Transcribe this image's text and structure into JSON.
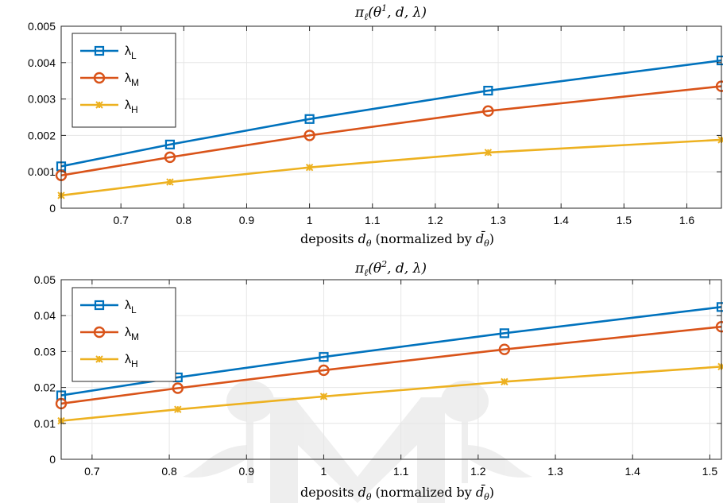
{
  "chart_data": [
    {
      "type": "line",
      "title": "π_ℓ(θ¹, d, λ)",
      "xlabel": "deposits d_θ (normalized by d̄_θ)",
      "ylabel": "",
      "xlim": [
        0.605,
        1.655
      ],
      "ylim": [
        0,
        0.005
      ],
      "xticks": [
        0.7,
        0.8,
        0.9,
        1,
        1.1,
        1.2,
        1.3,
        1.4,
        1.5,
        1.6
      ],
      "xtick_labels": [
        "0.7",
        "0.8",
        "0.9",
        "1",
        "1.1",
        "1.2",
        "1.3",
        "1.4",
        "1.5",
        "1.6"
      ],
      "yticks": [
        0,
        0.001,
        0.002,
        0.003,
        0.004,
        0.005
      ],
      "ytick_labels": [
        "0",
        "0.001",
        "0.002",
        "0.003",
        "0.004",
        "0.005"
      ],
      "grid": true,
      "legend_position": "top-left",
      "x": [
        0.605,
        0.778,
        1.0,
        1.284,
        1.655
      ],
      "series": [
        {
          "name": "λL",
          "label_main": "λ",
          "label_sub": "L",
          "color": "#0072BD",
          "marker": "square",
          "values": [
            0.00115,
            0.00175,
            0.00245,
            0.00323,
            0.00406
          ]
        },
        {
          "name": "λM",
          "label_main": "λ",
          "label_sub": "M",
          "color": "#D95319",
          "marker": "circle",
          "values": [
            0.0009,
            0.0014,
            0.002,
            0.00267,
            0.00335
          ]
        },
        {
          "name": "λH",
          "label_main": "λ",
          "label_sub": "H",
          "color": "#EDB120",
          "marker": "star",
          "values": [
            0.00035,
            0.00072,
            0.00112,
            0.00153,
            0.00188
          ]
        }
      ]
    },
    {
      "type": "line",
      "title": "π_ℓ(θ², d, λ)",
      "xlabel": "deposits d_θ (normalized by d̄_θ)",
      "ylabel": "",
      "xlim": [
        0.66,
        1.515
      ],
      "ylim": [
        0,
        0.05
      ],
      "xticks": [
        0.7,
        0.8,
        0.9,
        1,
        1.1,
        1.2,
        1.3,
        1.4,
        1.5
      ],
      "xtick_labels": [
        "0.7",
        "0.8",
        "0.9",
        "1",
        "1.1",
        "1.2",
        "1.3",
        "1.4",
        "1.5"
      ],
      "yticks": [
        0,
        0.01,
        0.02,
        0.03,
        0.04,
        0.05
      ],
      "ytick_labels": [
        "0",
        "0.01",
        "0.02",
        "0.03",
        "0.04",
        "0.05"
      ],
      "grid": true,
      "legend_position": "top-left",
      "x": [
        0.66,
        0.811,
        1.0,
        1.234,
        1.515
      ],
      "series": [
        {
          "name": "λL",
          "label_main": "λ",
          "label_sub": "L",
          "color": "#0072BD",
          "marker": "square",
          "values": [
            0.0178,
            0.0228,
            0.0285,
            0.0351,
            0.0424
          ]
        },
        {
          "name": "λM",
          "label_main": "λ",
          "label_sub": "M",
          "color": "#D95319",
          "marker": "circle",
          "values": [
            0.0155,
            0.0198,
            0.0248,
            0.0306,
            0.0369
          ]
        },
        {
          "name": "λH",
          "label_main": "λ",
          "label_sub": "H",
          "color": "#EDB120",
          "marker": "star",
          "values": [
            0.0107,
            0.0139,
            0.0175,
            0.0216,
            0.0258
          ]
        }
      ]
    }
  ]
}
